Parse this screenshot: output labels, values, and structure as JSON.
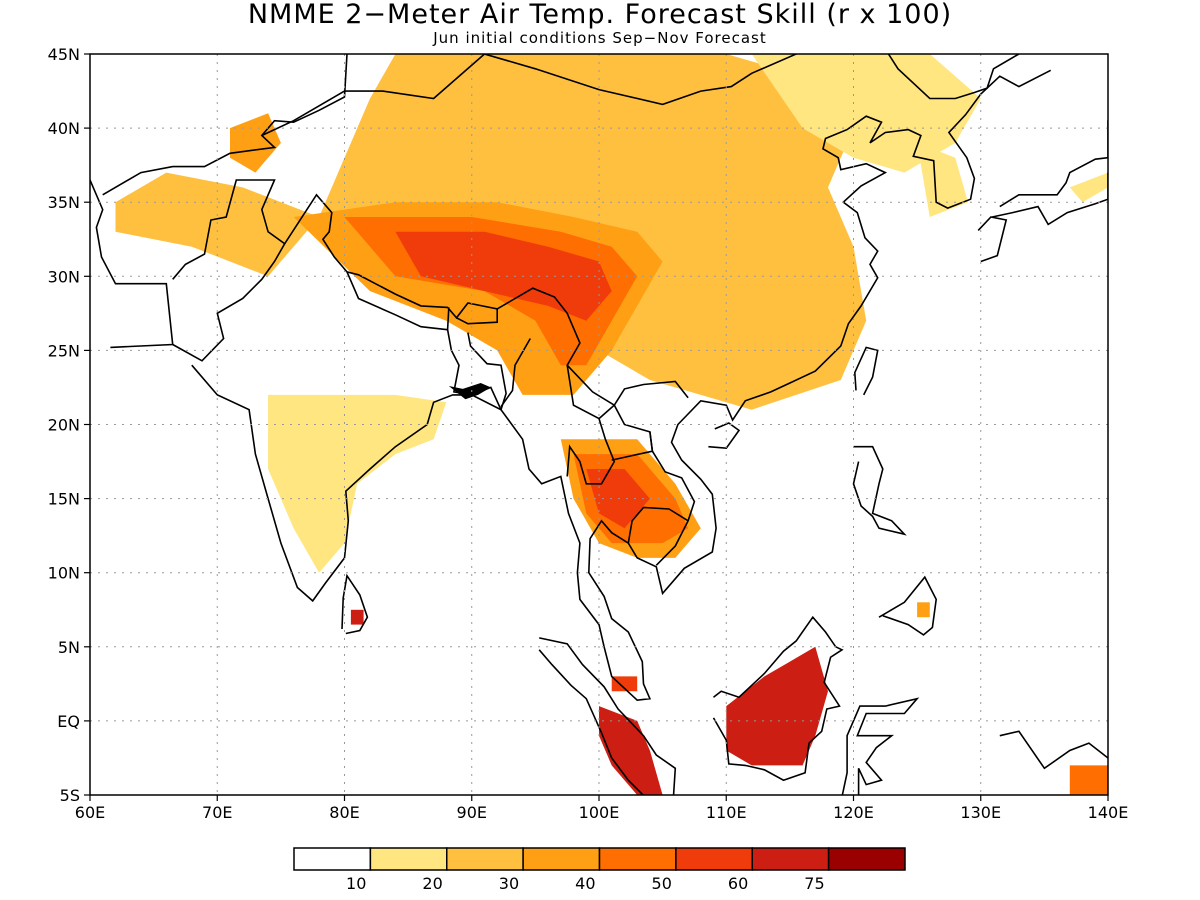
{
  "title": "NMME 2−Meter Air Temp. Forecast Skill (r x 100)",
  "subtitle": "Jun initial conditions  Sep−Nov Forecast",
  "map": {
    "lon_range": [
      60,
      140
    ],
    "lat_range": [
      -5,
      45
    ],
    "lon_ticks": [
      "60E",
      "70E",
      "80E",
      "90E",
      "100E",
      "110E",
      "120E",
      "130E",
      "140E"
    ],
    "lat_ticks": [
      "45N",
      "40N",
      "35N",
      "30N",
      "25N",
      "20N",
      "15N",
      "10N",
      "5N",
      "EQ",
      "5S"
    ]
  },
  "colorbar": {
    "colors": [
      "#ffffff",
      "#ffe680",
      "#ffc040",
      "#ffa014",
      "#ff6e00",
      "#f03c0a",
      "#cd1e14",
      "#9b0000"
    ],
    "labels": [
      "10",
      "20",
      "30",
      "40",
      "50",
      "60",
      "75"
    ]
  },
  "skill_regions": [
    {
      "level": 2,
      "pts": [
        [
          84,
          45
        ],
        [
          110,
          45
        ],
        [
          118,
          43
        ],
        [
          120,
          40
        ],
        [
          118,
          36
        ],
        [
          120,
          32
        ],
        [
          121,
          27
        ],
        [
          119,
          23
        ],
        [
          112,
          21
        ],
        [
          104,
          23
        ],
        [
          100,
          25
        ],
        [
          96,
          27
        ],
        [
          92,
          27
        ],
        [
          88,
          28
        ],
        [
          82,
          30
        ],
        [
          78,
          34
        ],
        [
          72,
          36
        ],
        [
          66,
          37
        ],
        [
          62,
          35
        ],
        [
          62,
          33
        ],
        [
          68,
          32
        ],
        [
          74,
          30
        ],
        [
          78,
          34
        ],
        [
          80,
          38
        ],
        [
          82,
          42
        ]
      ]
    },
    {
      "level": 1,
      "pts": [
        [
          112,
          45
        ],
        [
          126,
          45
        ],
        [
          130,
          42
        ],
        [
          128,
          39
        ],
        [
          124,
          37
        ],
        [
          120,
          38
        ],
        [
          116,
          40
        ]
      ]
    },
    {
      "level": 1,
      "pts": [
        [
          125,
          39
        ],
        [
          128,
          38
        ],
        [
          129,
          35
        ],
        [
          126,
          34
        ]
      ]
    },
    {
      "level": 1,
      "pts": [
        [
          74,
          22
        ],
        [
          80,
          22
        ],
        [
          84,
          22
        ],
        [
          88,
          21.5
        ],
        [
          87,
          19
        ],
        [
          84,
          18
        ],
        [
          81,
          16
        ],
        [
          80,
          12
        ],
        [
          78,
          10
        ],
        [
          76,
          13
        ],
        [
          74,
          17
        ]
      ]
    },
    {
      "level": 3,
      "pts": [
        [
          76,
          34
        ],
        [
          84,
          35
        ],
        [
          92,
          35
        ],
        [
          98,
          34
        ],
        [
          103,
          33
        ],
        [
          105,
          31
        ],
        [
          103,
          28
        ],
        [
          101,
          25
        ],
        [
          98,
          22
        ],
        [
          94,
          22
        ],
        [
          92,
          25
        ],
        [
          88,
          27
        ],
        [
          82,
          29
        ]
      ]
    },
    {
      "level": 3,
      "pts": [
        [
          71,
          40
        ],
        [
          74,
          41
        ],
        [
          75,
          39
        ],
        [
          73,
          37
        ],
        [
          71,
          38
        ]
      ]
    },
    {
      "level": 3,
      "pts": [
        [
          97,
          19
        ],
        [
          103,
          19
        ],
        [
          106,
          16
        ],
        [
          108,
          13
        ],
        [
          106,
          11
        ],
        [
          103,
          11
        ],
        [
          100,
          12
        ],
        [
          98,
          15
        ]
      ]
    },
    {
      "level": 4,
      "pts": [
        [
          80,
          34
        ],
        [
          90,
          34
        ],
        [
          97,
          33
        ],
        [
          101,
          32
        ],
        [
          103,
          30
        ],
        [
          101,
          27
        ],
        [
          99,
          24
        ],
        [
          97,
          24
        ],
        [
          95,
          27
        ],
        [
          91,
          29
        ],
        [
          84,
          30
        ]
      ]
    },
    {
      "level": 4,
      "pts": [
        [
          98,
          18
        ],
        [
          103,
          18
        ],
        [
          106,
          15
        ],
        [
          107,
          13
        ],
        [
          105,
          12
        ],
        [
          101,
          12
        ],
        [
          99,
          14
        ]
      ]
    },
    {
      "level": 5,
      "pts": [
        [
          84,
          33
        ],
        [
          91,
          33
        ],
        [
          96,
          32
        ],
        [
          100,
          31
        ],
        [
          101,
          29
        ],
        [
          99,
          27
        ],
        [
          96,
          28
        ],
        [
          91,
          29
        ],
        [
          86,
          30
        ]
      ]
    },
    {
      "level": 5,
      "pts": [
        [
          99,
          17
        ],
        [
          102,
          17
        ],
        [
          104,
          15
        ],
        [
          102,
          13
        ],
        [
          100,
          14
        ]
      ]
    },
    {
      "level": 6,
      "pts": [
        [
          110,
          1
        ],
        [
          113,
          3
        ],
        [
          115,
          4
        ],
        [
          117,
          5
        ],
        [
          118,
          2
        ],
        [
          117,
          -1
        ],
        [
          116,
          -3
        ],
        [
          112,
          -3
        ],
        [
          110,
          -2
        ]
      ]
    },
    {
      "level": 6,
      "pts": [
        [
          100,
          1
        ],
        [
          103,
          0
        ],
        [
          104,
          -2
        ],
        [
          105,
          -5
        ],
        [
          103,
          -5
        ],
        [
          101,
          -3
        ],
        [
          100,
          -1
        ]
      ]
    },
    {
      "level": 5,
      "pts": [
        [
          101,
          3
        ],
        [
          103,
          3
        ],
        [
          103,
          2
        ],
        [
          101,
          2
        ]
      ]
    },
    {
      "level": 6,
      "pts": [
        [
          80.5,
          7.5
        ],
        [
          81.5,
          7.5
        ],
        [
          81.5,
          6.5
        ],
        [
          80.5,
          6.5
        ]
      ]
    },
    {
      "level": 4,
      "pts": [
        [
          137,
          -3
        ],
        [
          140,
          -3
        ],
        [
          140,
          -5
        ],
        [
          137,
          -5
        ]
      ]
    },
    {
      "level": 3,
      "pts": [
        [
          125,
          8
        ],
        [
          126,
          8
        ],
        [
          126,
          7
        ],
        [
          125,
          7
        ]
      ]
    },
    {
      "level": 1,
      "pts": [
        [
          137,
          36
        ],
        [
          140,
          37
        ],
        [
          140,
          36
        ],
        [
          138,
          35
        ]
      ]
    }
  ]
}
